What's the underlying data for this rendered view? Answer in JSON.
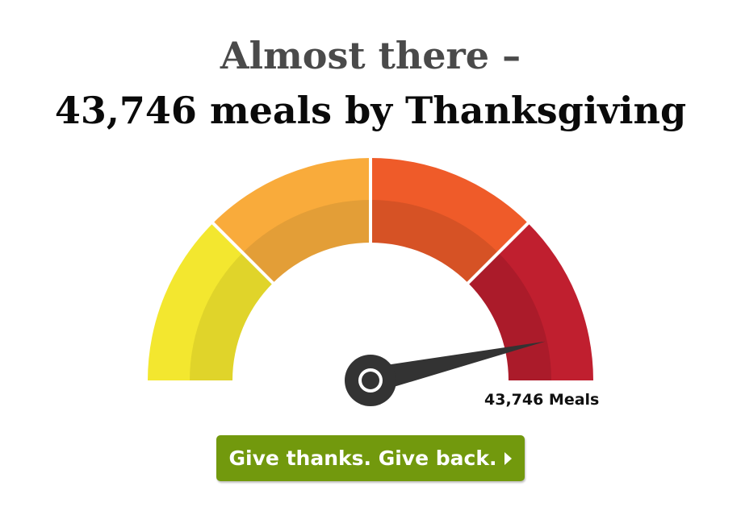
{
  "header": {
    "line1": "Almost there –",
    "line2": "43,746 meals by Thanksgiving"
  },
  "gauge": {
    "value_label": "43,746 Meals",
    "needle_fraction": 0.93,
    "segments": [
      {
        "outer": "#f3e72f",
        "inner": "#e0d42a"
      },
      {
        "outer": "#f9ab3b",
        "inner": "#e39e37"
      },
      {
        "outer": "#ef5b29",
        "inner": "#d65225"
      },
      {
        "outer": "#c01f2f",
        "inner": "#ab1b2a"
      }
    ],
    "needle_color": "#333333"
  },
  "cta": {
    "label": "Give thanks. Give back.",
    "icon": "caret-right-icon",
    "color": "#72990d"
  }
}
